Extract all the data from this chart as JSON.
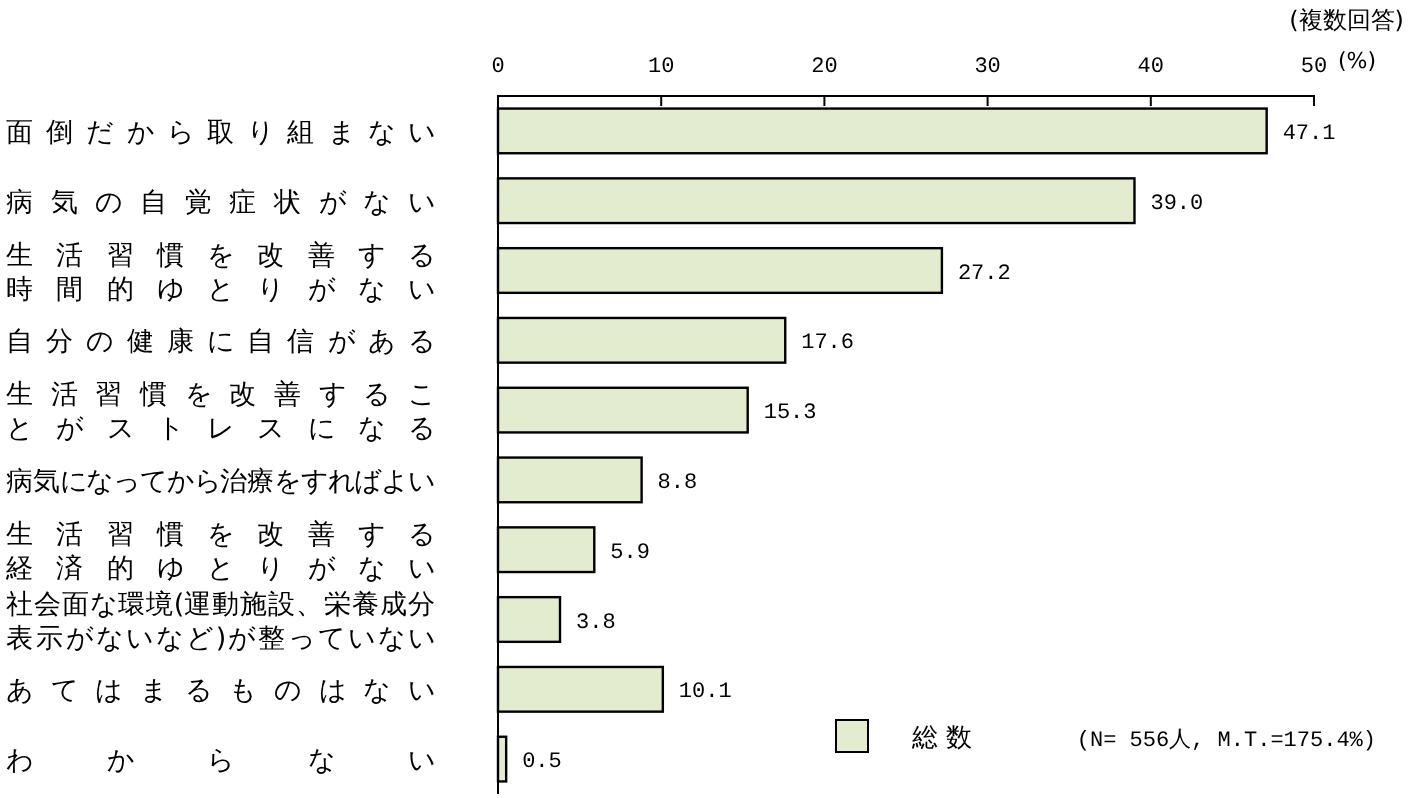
{
  "chart_data": {
    "type": "bar",
    "orientation": "horizontal",
    "categories": [
      "面倒だから取り組まない",
      "病気の自覚症状がない",
      "生活習慣を改善する時間的ゆとりがない",
      "自分の健康に自信がある",
      "生活習慣を改善することがストレスになる",
      "病気になってから治療をすればよい",
      "生活習慣を改善する経済的ゆとりがない",
      "社会面な環境(運動施設、栄養成分表示がないなど)が整っていない",
      "あてはまるものはない",
      "わからない"
    ],
    "series": [
      {
        "name": "総 数",
        "color": "#e4ecd0",
        "values": [
          47.1,
          39.0,
          27.2,
          17.6,
          15.3,
          8.8,
          5.9,
          3.8,
          10.1,
          0.5
        ],
        "value_labels": [
          "47.1",
          "39.0",
          "27.2",
          "17.6",
          "15.3",
          "8.8",
          "5.9",
          "3.8",
          "10.1",
          "0.5"
        ]
      }
    ],
    "xlim": [
      0,
      50
    ],
    "xticks": [
      0,
      10,
      20,
      30,
      40,
      50
    ],
    "xlabel": "(%)",
    "legend": "bottom right",
    "grid": false,
    "annotations": [
      "(複数回答)",
      "(N= 556人, M.T.=175.4%)"
    ]
  }
}
